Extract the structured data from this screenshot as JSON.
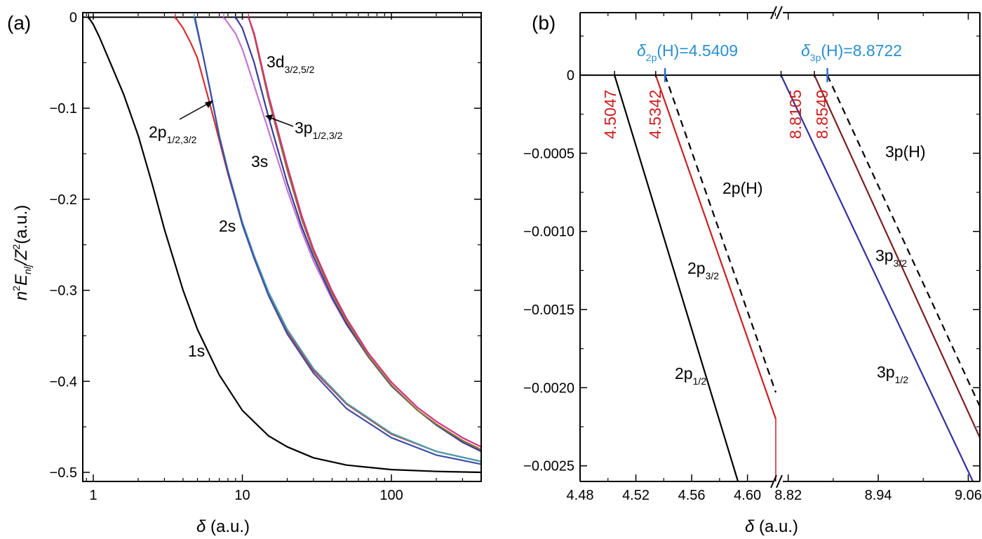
{
  "chart_data": [
    {
      "type": "line",
      "panel_label": "(a)",
      "xscale": "log",
      "xlim": [
        0.85,
        400
      ],
      "ylim": [
        -0.51,
        0.005
      ],
      "x_ticks": [
        "1",
        "10",
        "100"
      ],
      "y_ticks": [
        "0",
        "−0.1",
        "−0.2",
        "−0.3",
        "−0.4",
        "−0.5"
      ],
      "xlabel_symbol": "δ",
      "xlabel_unit": " (a.u.)",
      "ylabel_prefix": "n",
      "ylabel_sup1": "2",
      "ylabel_E": "E",
      "ylabel_sub": "nlj",
      "ylabel_Z": "/Z",
      "ylabel_sup2": "2",
      "ylabel_unit": "(a.u.)",
      "labels": {
        "s1": "1s",
        "s2": "2s",
        "s3": "3s",
        "p2_main": "2p",
        "p2_sub": "1/2,3/2",
        "p3_main": "3p",
        "p3_sub": "1/2,3/2",
        "d3_main": "3d",
        "d3_sub": "3/2,5/2"
      },
      "series": [
        {
          "color": "#000000",
          "x": [
            0.93,
            1.0,
            1.1,
            1.3,
            1.6,
            2.0,
            2.5,
            3.0,
            4.0,
            5.0,
            7.0,
            10.0,
            15.0,
            20.0,
            30.0,
            50.0,
            100.0,
            200.0,
            400.0
          ],
          "y": [
            0.0,
            -0.008,
            -0.022,
            -0.05,
            -0.085,
            -0.13,
            -0.185,
            -0.233,
            -0.3,
            -0.343,
            -0.393,
            -0.432,
            -0.46,
            -0.472,
            -0.484,
            -0.492,
            -0.497,
            -0.499,
            -0.5
          ]
        },
        {
          "color": "#d32f2f",
          "x": [
            3.55,
            4.0,
            4.5,
            5.0,
            6.0,
            7.0,
            8.0,
            10.0,
            12.0,
            15.0,
            20.0,
            30.0,
            50.0,
            100.0,
            200.0,
            400.0
          ],
          "y": [
            0.0,
            -0.012,
            -0.028,
            -0.045,
            -0.093,
            -0.135,
            -0.172,
            -0.227,
            -0.265,
            -0.305,
            -0.345,
            -0.388,
            -0.425,
            -0.458,
            -0.477,
            -0.488
          ]
        },
        {
          "color": "#4a9fb0",
          "x": [
            4.75,
            5.5,
            6.0,
            7.0,
            8.0,
            10.0,
            12.0,
            15.0,
            20.0,
            30.0,
            50.0,
            100.0,
            200.0,
            400.0
          ],
          "y": [
            0.0,
            -0.045,
            -0.075,
            -0.13,
            -0.168,
            -0.225,
            -0.262,
            -0.302,
            -0.343,
            -0.386,
            -0.424,
            -0.457,
            -0.477,
            -0.488
          ]
        },
        {
          "color": "#3f4fa8",
          "x": [
            4.8,
            5.5,
            6.0,
            7.0,
            8.0,
            10.0,
            12.0,
            15.0,
            20.0,
            30.0,
            50.0,
            100.0,
            200.0,
            400.0
          ],
          "y": [
            0.0,
            -0.045,
            -0.076,
            -0.131,
            -0.17,
            -0.228,
            -0.265,
            -0.306,
            -0.348,
            -0.391,
            -0.43,
            -0.462,
            -0.481,
            -0.491
          ]
        },
        {
          "color": "#c475d0",
          "x": [
            7.5,
            9.0,
            10.0,
            12.0,
            15.0,
            20.0,
            25.0,
            30.0,
            40.0,
            50.0,
            70.0,
            100.0,
            150.0,
            200.0,
            300.0,
            400.0
          ],
          "y": [
            0.0,
            -0.018,
            -0.035,
            -0.075,
            -0.125,
            -0.19,
            -0.235,
            -0.268,
            -0.31,
            -0.338,
            -0.373,
            -0.405,
            -0.432,
            -0.447,
            -0.466,
            -0.476
          ]
        },
        {
          "color": "#3b3b9e",
          "x": [
            9.0,
            10.0,
            12.0,
            15.0,
            20.0,
            25.0,
            30.0,
            40.0,
            50.0,
            70.0,
            100.0,
            150.0,
            200.0,
            300.0,
            400.0
          ],
          "y": [
            0.0,
            -0.012,
            -0.05,
            -0.11,
            -0.182,
            -0.23,
            -0.263,
            -0.308,
            -0.337,
            -0.373,
            -0.405,
            -0.432,
            -0.448,
            -0.467,
            -0.477
          ]
        },
        {
          "color": "#8a7a2a",
          "x": [
            11.0,
            12.0,
            15.0,
            20.0,
            25.0,
            30.0,
            40.0,
            50.0,
            70.0,
            100.0,
            150.0,
            200.0,
            300.0,
            400.0
          ],
          "y": [
            0.0,
            -0.02,
            -0.09,
            -0.168,
            -0.222,
            -0.258,
            -0.304,
            -0.334,
            -0.372,
            -0.404,
            -0.432,
            -0.447,
            -0.465,
            -0.475
          ]
        },
        {
          "color": "#d6307e",
          "x": [
            11.0,
            12.0,
            15.0,
            20.0,
            25.0,
            30.0,
            40.0,
            50.0,
            70.0,
            100.0,
            150.0,
            200.0,
            300.0,
            400.0
          ],
          "y": [
            0.0,
            -0.018,
            -0.086,
            -0.163,
            -0.218,
            -0.255,
            -0.301,
            -0.331,
            -0.369,
            -0.401,
            -0.429,
            -0.444,
            -0.462,
            -0.472
          ]
        }
      ],
      "threshold_ticks": [
        {
          "x": 0.93,
          "color": "#000000"
        },
        {
          "x": 3.55,
          "color": "#d32f2f"
        },
        {
          "x": 4.75,
          "color": "#4a9fb0"
        },
        {
          "x": 7.5,
          "color": "#c475d0"
        },
        {
          "x": 9.0,
          "color": "#3b3b9e"
        },
        {
          "x": 11.0,
          "color": "#d6307e"
        }
      ]
    },
    {
      "type": "line",
      "panel_label": "(b)",
      "broken_x_axis": true,
      "segments": [
        {
          "xlim": [
            4.48,
            4.6203
          ],
          "x_ticks": [
            "4.48",
            "4.52",
            "4.56",
            "4.60"
          ],
          "x_tick_values": [
            4.48,
            4.52,
            4.56,
            4.6
          ]
        },
        {
          "xlim": [
            8.81,
            9.0755
          ],
          "x_ticks": [
            "8.82",
            "8.94",
            "9.06"
          ],
          "x_tick_values": [
            8.82,
            8.94,
            9.06
          ]
        }
      ],
      "ylim": [
        -0.0026,
        0.0004
      ],
      "y_ticks": [
        "0",
        "−0.0005",
        "−0.0010",
        "−0.0015",
        "−0.0020",
        "−0.0025"
      ],
      "y_tick_values": [
        0,
        -0.0005,
        -0.001,
        -0.0015,
        -0.002,
        -0.0025
      ],
      "xlabel_symbol": "δ",
      "xlabel_unit": " (a.u.)",
      "header_annotations": [
        {
          "delta": "δ",
          "sub": "2p",
          "text": "(H)=4.5409",
          "x": 4.5409
        },
        {
          "delta": "δ",
          "sub": "3p",
          "text": "(H)=8.8722",
          "x": 8.8722
        }
      ],
      "threshold_labels": [
        "4.5047",
        "4.5342",
        "8.8105",
        "8.8549"
      ],
      "threshold_values": [
        4.5047,
        4.5342,
        8.8105,
        8.8549
      ],
      "labels": {
        "p2_H": "2p(H)",
        "p3_H": "3p(H)",
        "p2_32_main": "2p",
        "p2_32_sub": "3/2",
        "p2_12_main": "2p",
        "p2_12_sub": "1/2",
        "p3_32_main": "3p",
        "p3_32_sub": "3/2",
        "p3_12_main": "3p",
        "p3_12_sub": "1/2"
      },
      "series": [
        {
          "segment": 0,
          "color": "#000000",
          "style": "solid",
          "x": [
            4.5047,
            4.5932
          ],
          "y": [
            0.0,
            -0.0026
          ]
        },
        {
          "segment": 0,
          "color": "#cc1f1f",
          "style": "solid",
          "x": [
            4.5342,
            4.6203
          ],
          "y": [
            0.0,
            -0.0022
          ]
        },
        {
          "segment": 0,
          "color": "#000000",
          "style": "dashed",
          "x": [
            4.5409,
            4.6203
          ],
          "y": [
            0.0,
            -0.00203
          ]
        },
        {
          "segment": 1,
          "color": "#3030a0",
          "style": "solid",
          "x": [
            8.8105,
            9.0662
          ],
          "y": [
            0.0,
            -0.0026
          ]
        },
        {
          "segment": 1,
          "color": "#7a1f1f",
          "style": "solid",
          "x": [
            8.8549,
            9.0755
          ],
          "y": [
            0.0,
            -0.00232
          ]
        },
        {
          "segment": 1,
          "color": "#000000",
          "style": "dashed",
          "x": [
            8.8722,
            9.0755
          ],
          "y": [
            0.0,
            -0.00212
          ]
        }
      ]
    }
  ]
}
